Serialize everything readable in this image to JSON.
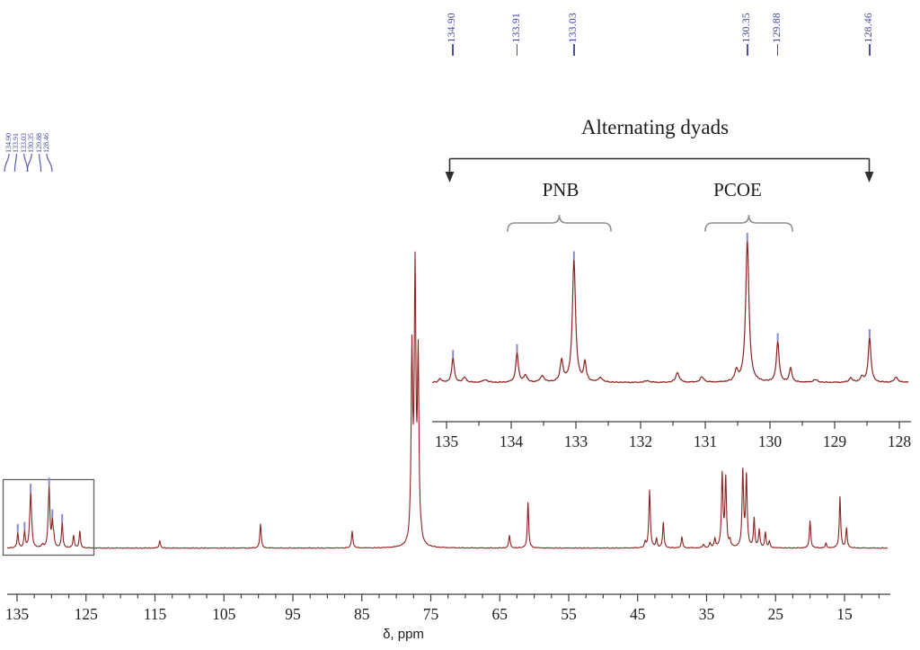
{
  "figure": {
    "background": "#ffffff",
    "trace_color": "#8b2322",
    "axis_color": "#3d3d3d",
    "text_color": "#1c1c1c",
    "peak_label_color": "#40409e",
    "peak_tick_color": "#8a8ad4",
    "box_color": "#606060",
    "brace_color": "#8f8f8f",
    "arrow_color": "#2f2f2f"
  },
  "annotations": {
    "alternating_dyads": "Alternating dyads",
    "pnb": "PNB",
    "pcoe": "PCOE"
  },
  "chart_data": {
    "type": "line",
    "title": "",
    "xlabel": "δ, ppm",
    "x_axis_reversed": true,
    "peak_format": "[ppm, intensity_px, halfwidth_px]",
    "peak_label_texts": [
      "134.90",
      "133.91",
      "133.03",
      "130.35",
      "129.88",
      "128.46"
    ],
    "labeled_peaks_ppm": [
      134.9,
      133.91,
      133.03,
      130.35,
      129.88,
      128.46
    ],
    "main_spectrum": {
      "xlim": [
        136.4,
        8.5
      ],
      "tick_labels": [
        135,
        125,
        115,
        105,
        95,
        85,
        75,
        65,
        55,
        45,
        35,
        25,
        15
      ],
      "minor_tick_step": 2.5,
      "boxed_region_ppm": [
        137.0,
        123.9
      ],
      "peaks": [
        [
          134.9,
          17,
          0.9
        ],
        [
          133.91,
          18,
          0.9
        ],
        [
          133.2,
          8,
          0.9
        ],
        [
          133.03,
          56,
          1.0
        ],
        [
          132.87,
          9,
          0.9
        ],
        [
          131.3,
          3,
          1.2
        ],
        [
          130.5,
          8,
          0.9
        ],
        [
          130.35,
          64,
          1.0
        ],
        [
          129.88,
          26,
          0.9
        ],
        [
          129.68,
          10,
          0.9
        ],
        [
          128.46,
          28,
          0.9
        ],
        [
          126.8,
          14,
          0.9
        ],
        [
          125.9,
          18,
          0.9
        ],
        [
          114.3,
          8,
          0.9
        ],
        [
          99.7,
          27,
          0.9
        ],
        [
          86.4,
          19,
          0.9
        ],
        [
          78.0,
          6,
          1.0
        ],
        [
          77.74,
          205,
          1.0
        ],
        [
          77.28,
          298,
          1.1
        ],
        [
          76.83,
          200,
          1.0
        ],
        [
          76.4,
          5,
          1.0
        ],
        [
          63.6,
          14,
          0.9
        ],
        [
          60.9,
          50,
          0.9
        ],
        [
          43.9,
          6,
          0.9
        ],
        [
          43.27,
          64,
          1.0
        ],
        [
          42.27,
          10,
          0.9
        ],
        [
          41.28,
          28,
          0.9
        ],
        [
          38.58,
          12,
          0.9
        ],
        [
          35.45,
          4,
          1.0
        ],
        [
          34.5,
          5,
          1.0
        ],
        [
          33.8,
          10,
          0.9
        ],
        [
          32.74,
          80,
          1.0
        ],
        [
          32.23,
          76,
          1.0
        ],
        [
          31.6,
          7,
          0.9
        ],
        [
          29.75,
          84,
          1.0
        ],
        [
          29.23,
          78,
          1.0
        ],
        [
          28.11,
          32,
          0.9
        ],
        [
          27.37,
          20,
          0.9
        ],
        [
          26.49,
          17,
          0.9
        ],
        [
          25.9,
          7,
          0.9
        ],
        [
          20.0,
          30,
          0.9
        ],
        [
          17.7,
          5,
          0.9
        ],
        [
          15.66,
          57,
          0.9
        ],
        [
          14.71,
          22,
          0.9
        ]
      ]
    },
    "inset_spectrum": {
      "xlim": [
        135.2,
        127.7
      ],
      "tick_labels": [
        135,
        134,
        133,
        132,
        131,
        130,
        129,
        128
      ],
      "minor_tick_step": 0.5,
      "peaks": [
        [
          135.1,
          4,
          2.0
        ],
        [
          134.9,
          27,
          1.7
        ],
        [
          134.72,
          6,
          2.0
        ],
        [
          134.4,
          3,
          3.0
        ],
        [
          133.91,
          33,
          1.7
        ],
        [
          133.78,
          8,
          2.0
        ],
        [
          133.52,
          7,
          2.5
        ],
        [
          133.22,
          24,
          1.9
        ],
        [
          133.03,
          136,
          2.1
        ],
        [
          132.86,
          21,
          1.7
        ],
        [
          132.62,
          5,
          2.5
        ],
        [
          131.9,
          2,
          3.0
        ],
        [
          131.43,
          11,
          2.3
        ],
        [
          131.05,
          6,
          2.5
        ],
        [
          130.52,
          12,
          2.0
        ],
        [
          130.35,
          157,
          2.2
        ],
        [
          129.88,
          45,
          1.8
        ],
        [
          129.68,
          16,
          1.7
        ],
        [
          129.3,
          3,
          3.0
        ],
        [
          128.75,
          5,
          2.2
        ],
        [
          128.58,
          6,
          2.0
        ],
        [
          128.46,
          50,
          1.8
        ],
        [
          128.05,
          6,
          2.2
        ],
        [
          127.8,
          3,
          2.5
        ]
      ]
    }
  }
}
